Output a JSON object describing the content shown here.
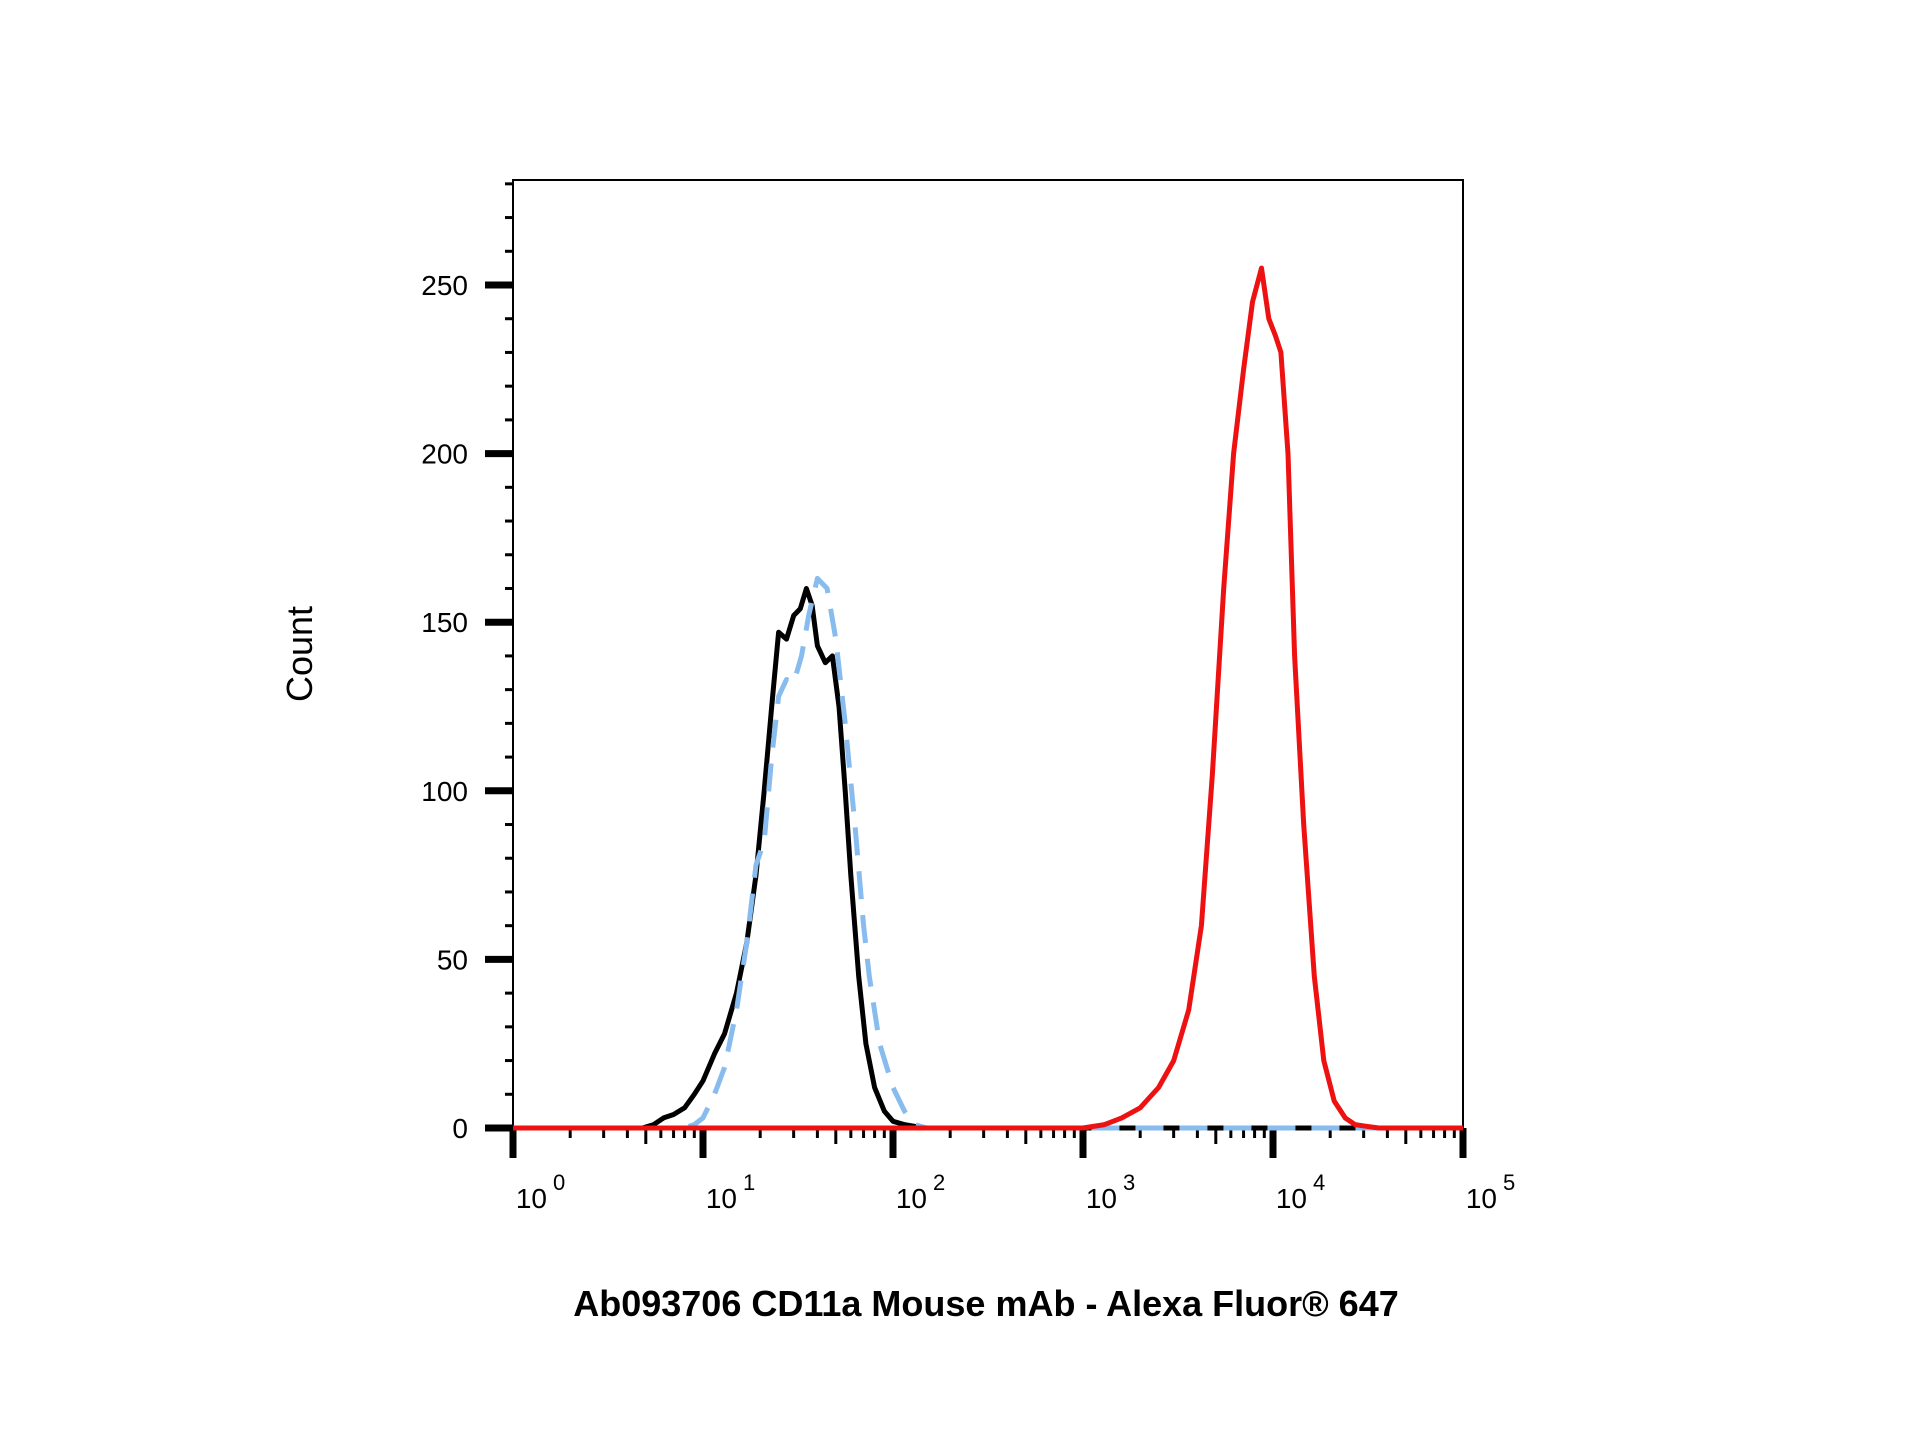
{
  "chart_data": {
    "type": "line",
    "xscale": "log",
    "xlim": [
      1,
      100000
    ],
    "ylim": [
      0,
      280
    ],
    "xlabel": "Ab093706 CD11a Mouse mAb - Alexa Fluor® 647",
    "ylabel": "Count",
    "grid": false,
    "legend": "none",
    "y_ticks": [
      {
        "value": 0,
        "label": "0"
      },
      {
        "value": 50,
        "label": "50"
      },
      {
        "value": 100,
        "label": "100"
      },
      {
        "value": 150,
        "label": "150"
      },
      {
        "value": 200,
        "label": "200"
      },
      {
        "value": 250,
        "label": "250"
      }
    ],
    "x_ticks": [
      {
        "value": 1,
        "base": "10",
        "exp": "0"
      },
      {
        "value": 10,
        "base": "10",
        "exp": "1"
      },
      {
        "value": 100,
        "base": "10",
        "exp": "2"
      },
      {
        "value": 1000,
        "base": "10",
        "exp": "3"
      },
      {
        "value": 10000,
        "base": "10",
        "exp": "4"
      },
      {
        "value": 100000,
        "base": "10",
        "exp": "5"
      }
    ],
    "series": [
      {
        "color": "#000000",
        "dash": "solid",
        "x": [
          1,
          4.8,
          5.5,
          6.2,
          7,
          8,
          9,
          10,
          11.5,
          13,
          15,
          17,
          19,
          21,
          23,
          25,
          27.5,
          30,
          32.5,
          35,
          37.5,
          40,
          44,
          48,
          52,
          56,
          60,
          66,
          72,
          80,
          90,
          100,
          115,
          130,
          150,
          180,
          220,
          270,
          400,
          100000
        ],
        "y": [
          0,
          0,
          1,
          3,
          4,
          6,
          10,
          14,
          22,
          28,
          40,
          55,
          75,
          100,
          125,
          147,
          145,
          152,
          154,
          160,
          155,
          143,
          138,
          140,
          125,
          100,
          75,
          45,
          25,
          12,
          5,
          2,
          1,
          0.5,
          0,
          0,
          0,
          0,
          0,
          0
        ]
      },
      {
        "color": "#88bbee",
        "dash": "dashed",
        "x": [
          1,
          8,
          9,
          10,
          11.5,
          13,
          15,
          17,
          19,
          21,
          23,
          25,
          27.5,
          30,
          33,
          36,
          40,
          45,
          50,
          56,
          63,
          70,
          75,
          85,
          100,
          115,
          130,
          150,
          180,
          220,
          270,
          400,
          100000
        ],
        "y": [
          0,
          0,
          1,
          3,
          10,
          18,
          35,
          55,
          78,
          85,
          110,
          128,
          133,
          132,
          140,
          152,
          163,
          160,
          145,
          120,
          90,
          60,
          45,
          25,
          12,
          5,
          1,
          0,
          0,
          0,
          0,
          0,
          0
        ]
      },
      {
        "color": "#ee1111",
        "dash": "solid",
        "x": [
          1,
          500,
          1000,
          1300,
          1600,
          2000,
          2500,
          3000,
          3600,
          4200,
          4800,
          5500,
          6200,
          7000,
          7800,
          8700,
          9500,
          10300,
          11000,
          12000,
          13000,
          14500,
          16500,
          18500,
          21000,
          24000,
          27000,
          31000,
          36000,
          42000,
          50000,
          100000
        ],
        "y": [
          0,
          0,
          0,
          1,
          3,
          6,
          12,
          20,
          35,
          60,
          105,
          160,
          200,
          225,
          245,
          255,
          240,
          235,
          230,
          200,
          140,
          90,
          45,
          20,
          8,
          3,
          1,
          0.5,
          0,
          0,
          0,
          0
        ]
      }
    ]
  }
}
